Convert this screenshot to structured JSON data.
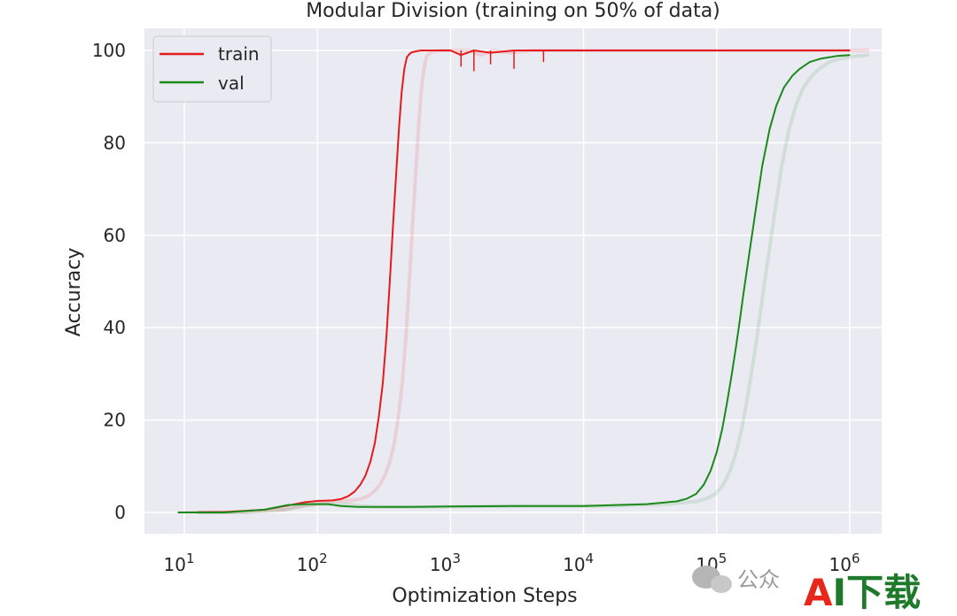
{
  "chart_data": {
    "type": "line",
    "title": "Modular Division (training on 50% of data)",
    "xlabel": "Optimization Steps",
    "ylabel": "Accuracy",
    "xscale": "log",
    "xlim": [
      10,
      1000000
    ],
    "ylim": [
      0,
      100
    ],
    "x_ticks": [
      10,
      100,
      1000,
      10000,
      100000,
      1000000
    ],
    "x_tick_labels": [
      {
        "base": "10",
        "exp": "1"
      },
      {
        "base": "10",
        "exp": "2"
      },
      {
        "base": "10",
        "exp": "3"
      },
      {
        "base": "10",
        "exp": "4"
      },
      {
        "base": "10",
        "exp": "5"
      },
      {
        "base": "10",
        "exp": "6"
      }
    ],
    "y_ticks": [
      0,
      20,
      40,
      60,
      80,
      100
    ],
    "grid": true,
    "legend_position": "top-left",
    "series": [
      {
        "name": "train",
        "color": "#e41a1c",
        "x": [
          9,
          20,
          40,
          60,
          80,
          100,
          130,
          150,
          170,
          190,
          210,
          230,
          250,
          270,
          290,
          310,
          330,
          350,
          370,
          390,
          410,
          430,
          450,
          470,
          490,
          510,
          550,
          600,
          700,
          800,
          1000,
          1200,
          1500,
          2000,
          3000,
          5000,
          10000,
          30000,
          100000,
          300000,
          1000000
        ],
        "y": [
          0,
          0.1,
          0.6,
          1.5,
          2.2,
          2.5,
          2.6,
          2.9,
          3.5,
          4.5,
          6,
          8,
          11,
          15,
          21,
          28,
          38,
          50,
          62,
          73,
          83,
          91,
          96,
          98.5,
          99.2,
          99.6,
          99.8,
          100,
          100,
          100,
          100,
          99,
          100,
          99.5,
          100,
          100,
          100,
          100,
          100,
          100,
          100
        ]
      },
      {
        "name": "val",
        "color": "#1a8a1a",
        "x": [
          9,
          20,
          40,
          60,
          80,
          100,
          120,
          150,
          200,
          300,
          500,
          1000,
          3000,
          10000,
          30000,
          50000,
          60000,
          70000,
          80000,
          90000,
          100000,
          110000,
          120000,
          130000,
          140000,
          150000,
          160000,
          180000,
          200000,
          220000,
          250000,
          280000,
          320000,
          370000,
          420000,
          500000,
          600000,
          800000,
          1000000
        ],
        "y": [
          0,
          0,
          0.6,
          1.6,
          1.8,
          1.8,
          1.8,
          1.4,
          1.2,
          1.2,
          1.2,
          1.3,
          1.4,
          1.4,
          1.8,
          2.4,
          3,
          4,
          6,
          9,
          13,
          18,
          24,
          30,
          36,
          42,
          48,
          58,
          67,
          75,
          83,
          88,
          92,
          94.5,
          96,
          97.5,
          98.2,
          98.8,
          99
        ]
      }
    ]
  },
  "watermark": {
    "text": "公众",
    "logo_a": "A",
    "logo_rest": "I下载"
  }
}
